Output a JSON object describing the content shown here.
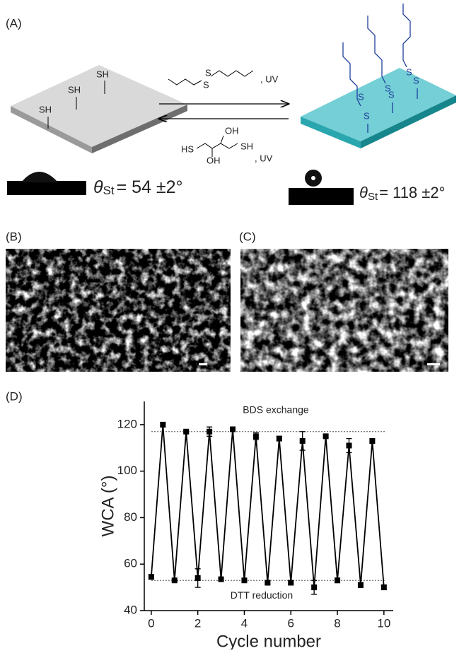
{
  "panels": {
    "a_label": "(A)",
    "b_label": "(B)",
    "c_label": "(C)",
    "d_label": "(D)"
  },
  "scheme": {
    "forward_reagent": {
      "atoms": [
        "S",
        "S"
      ],
      "condition": ", UV"
    },
    "reverse_reagent": {
      "atoms": [
        "HS",
        "OH",
        "OH",
        "SH"
      ],
      "condition": ", UV"
    },
    "substrate_groups": [
      "SH",
      "SH",
      "SH"
    ],
    "modified_atoms": [
      "S",
      "S",
      "S",
      "S",
      "S",
      "S"
    ],
    "angle_left": {
      "symbol": "θ",
      "subscript": "St",
      "text": "= 54 ±2°"
    },
    "angle_right": {
      "symbol": "θ",
      "subscript": "St",
      "text": "= 118 ±2°"
    }
  },
  "chart_data": {
    "type": "line",
    "xlabel": "Cycle number",
    "ylabel": "WCA (°)",
    "color": "#000000",
    "x": [
      0,
      0.5,
      1,
      1.5,
      2,
      2.5,
      3,
      3.5,
      4,
      4.5,
      5,
      5.5,
      6,
      6.5,
      7,
      7.5,
      8,
      8.5,
      9,
      9.5,
      10
    ],
    "values": [
      54.5,
      120,
      53,
      117,
      54,
      117,
      53.5,
      118,
      53,
      115,
      52,
      114,
      52,
      113,
      50,
      115,
      53,
      111,
      51,
      113,
      50
    ],
    "errors": [
      1,
      1,
      0.5,
      0.5,
      4,
      2,
      0.5,
      1,
      0.5,
      1.5,
      0.5,
      1,
      0.5,
      4,
      3,
      0.5,
      1,
      3,
      1,
      1,
      1
    ],
    "xlim": [
      -0.3,
      10.4
    ],
    "ylim": [
      40,
      130
    ],
    "xticks": [
      0,
      2,
      4,
      6,
      8,
      10
    ],
    "yticks": [
      40,
      60,
      80,
      100,
      120
    ],
    "reference_lines": [
      {
        "value": 117,
        "label": "BDS exchange"
      },
      {
        "value": 53,
        "label": "DTT reduction"
      }
    ]
  }
}
